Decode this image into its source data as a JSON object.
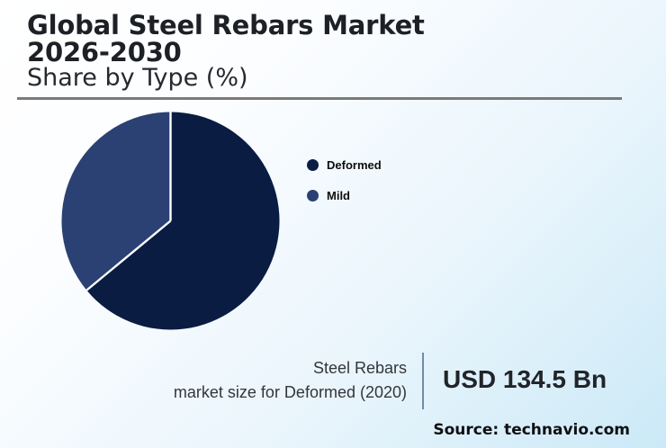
{
  "header": {
    "title_line1": "Global Steel Rebars Market",
    "title_line2": "2026-2030",
    "subtitle": "Share by Type (%)"
  },
  "chart_data": {
    "type": "pie",
    "title": "Global Steel Rebars Market 2026-2030 - Share by Type (%)",
    "unit": "%",
    "direction": "clockwise",
    "start_angle_deg": 0,
    "legend_position": "right",
    "labels_shown": false,
    "series": [
      {
        "name": "Deformed",
        "value": 64,
        "color": "#0a1c42"
      },
      {
        "name": "Mild",
        "value": 36,
        "color": "#2b4173"
      }
    ]
  },
  "stat": {
    "caption_line1": "Steel Rebars",
    "caption_line2": "market size for Deformed (2020)",
    "value": "USD 134.5 Bn"
  },
  "footer": {
    "source_label": "Source: technavio.com"
  },
  "colors": {
    "background_start": "#ffffff",
    "background_end": "#cbe9f7",
    "slice_divider": "#ffffff",
    "stat_divider": "#708ca0",
    "title_rule": "#7a7a7a"
  }
}
